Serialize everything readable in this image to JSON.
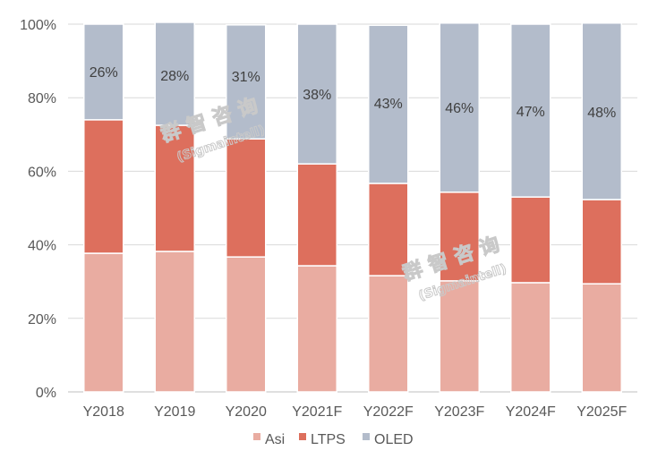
{
  "chart_data": {
    "type": "bar",
    "stacked": "percent",
    "categories": [
      "Y2018",
      "Y2019",
      "Y2020",
      "Y2021F",
      "Y2022F",
      "Y2023F",
      "Y2024F",
      "Y2025F"
    ],
    "series": [
      {
        "name": "Asi",
        "color": "#e9aca1",
        "values": [
          37.7,
          38.2,
          36.7,
          34.3,
          31.6,
          30.2,
          29.7,
          29.4
        ]
      },
      {
        "name": "LTPS",
        "color": "#dd6f5d",
        "values": [
          36.3,
          34.3,
          32.1,
          27.7,
          25.1,
          24.1,
          23.3,
          22.9
        ]
      },
      {
        "name": "OLED",
        "color": "#b3bccb",
        "values": [
          26,
          28,
          31,
          38,
          43,
          46,
          47,
          48
        ]
      }
    ],
    "data_labels": [
      "26%",
      "28%",
      "31%",
      "38%",
      "43%",
      "46%",
      "47%",
      "48%"
    ],
    "y_ticks": [
      "0%",
      "20%",
      "40%",
      "60%",
      "80%",
      "100%"
    ],
    "ylim": [
      0,
      100
    ],
    "grid": true,
    "legend_position": "bottom",
    "title": "",
    "xlabel": "",
    "ylabel": ""
  },
  "watermark": {
    "text": "群智咨询",
    "subtext": "(Sigmaintell)"
  }
}
